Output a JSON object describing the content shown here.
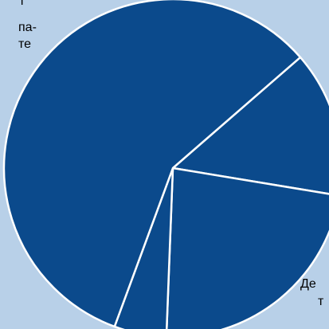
{
  "chart_data": {
    "type": "pie",
    "title": "",
    "colors": {
      "background": "#b8d0e8",
      "slice": "#0b4a8c",
      "separator": "#ffffff"
    },
    "slices": [
      {
        "value": 14
      },
      {
        "value": 23
      },
      {
        "value": 5
      },
      {
        "value": 58
      }
    ],
    "visible_label_fragments": {
      "top_left": [
        "т",
        "па-",
        "те"
      ],
      "bottom_right": [
        "Де",
        "т"
      ]
    }
  }
}
